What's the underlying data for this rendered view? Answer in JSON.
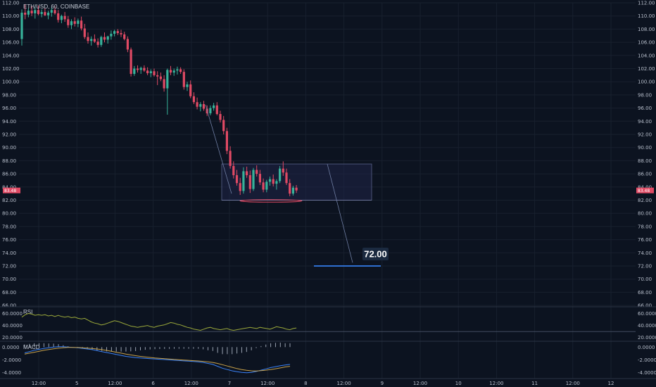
{
  "symbol_title": "ETH/USD, 60, COINBASE",
  "colors": {
    "background": "#0c1320",
    "up_candle": "#37b29a",
    "down_candle": "#e04a64",
    "target_line": "#2f6fd1",
    "zone_fill": "#1f2547",
    "rsi_line": "#9aa83a",
    "macd_line": "#3b82f6",
    "signal_line": "#c9a24a"
  },
  "chart_data": [
    {
      "type": "candlestick",
      "title": "ETH/USD, 60, COINBASE",
      "ylim": [
        65,
        112
      ],
      "y_ticks": [
        "112.00",
        "110.00",
        "108.00",
        "106.00",
        "104.00",
        "102.00",
        "100.00",
        "98.00",
        "96.00",
        "94.00",
        "92.00",
        "90.00",
        "88.00",
        "86.00",
        "84.00",
        "82.00",
        "80.00",
        "78.00",
        "76.00",
        "74.00",
        "72.00",
        "70.00",
        "68.00",
        "66.00"
      ],
      "x_ticks": [
        "12:00",
        "5",
        "12:00",
        "6",
        "12:00",
        "7",
        "12:00",
        "8",
        "12:00",
        "9",
        "12:00",
        "10",
        "12:00",
        "11",
        "12:00",
        "12"
      ],
      "last_price": "83.48",
      "target_label": "72.00",
      "target_value": 72.0,
      "range_box": {
        "y_top": 87.5,
        "y_bottom": 82.0
      },
      "candles": [
        [
          106.5,
          111.0,
          105.5,
          110.5
        ],
        [
          110.5,
          111.8,
          109.5,
          110.2
        ],
        [
          110.2,
          111.2,
          109.8,
          110.8
        ],
        [
          110.8,
          111.5,
          110.0,
          110.4
        ],
        [
          110.4,
          111.4,
          109.6,
          110.9
        ],
        [
          110.9,
          111.6,
          110.1,
          110.3
        ],
        [
          110.3,
          111.0,
          109.8,
          110.6
        ],
        [
          110.6,
          111.2,
          110.0,
          110.1
        ],
        [
          110.1,
          110.8,
          109.5,
          110.5
        ],
        [
          110.5,
          111.3,
          109.9,
          110.9
        ],
        [
          110.9,
          111.5,
          110.2,
          110.4
        ],
        [
          110.4,
          110.9,
          109.0,
          109.4
        ],
        [
          109.4,
          110.2,
          108.9,
          110.0
        ],
        [
          110.0,
          110.6,
          109.1,
          109.5
        ],
        [
          109.5,
          110.0,
          108.2,
          108.6
        ],
        [
          108.6,
          109.5,
          108.0,
          109.2
        ],
        [
          109.2,
          109.8,
          108.4,
          108.8
        ],
        [
          108.8,
          109.6,
          108.3,
          109.3
        ],
        [
          109.3,
          109.9,
          107.8,
          108.1
        ],
        [
          108.1,
          108.8,
          106.5,
          106.8
        ],
        [
          106.8,
          107.5,
          105.8,
          106.2
        ],
        [
          106.2,
          106.9,
          105.5,
          106.5
        ],
        [
          106.5,
          107.2,
          105.9,
          106.1
        ],
        [
          106.1,
          106.6,
          105.2,
          105.6
        ],
        [
          105.6,
          107.0,
          105.3,
          106.8
        ],
        [
          106.8,
          107.5,
          106.0,
          106.4
        ],
        [
          106.4,
          107.0,
          105.8,
          106.9
        ],
        [
          106.9,
          107.8,
          106.4,
          107.3
        ],
        [
          107.3,
          107.9,
          106.9,
          107.7
        ],
        [
          107.7,
          108.0,
          107.1,
          107.4
        ],
        [
          107.4,
          107.9,
          106.8,
          107.2
        ],
        [
          107.2,
          107.6,
          106.3,
          106.5
        ],
        [
          106.5,
          106.9,
          104.5,
          104.9
        ],
        [
          104.9,
          105.2,
          100.8,
          101.2
        ],
        [
          101.2,
          102.4,
          100.9,
          102.0
        ],
        [
          102.0,
          102.5,
          101.4,
          101.8
        ],
        [
          101.8,
          102.3,
          101.2,
          102.1
        ],
        [
          102.1,
          102.5,
          101.5,
          101.7
        ],
        [
          101.7,
          102.2,
          101.0,
          101.3
        ],
        [
          101.3,
          101.9,
          100.7,
          101.6
        ],
        [
          101.6,
          102.0,
          100.8,
          101.0
        ],
        [
          101.0,
          101.6,
          99.5,
          100.8
        ],
        [
          100.8,
          101.4,
          100.1,
          100.4
        ],
        [
          100.4,
          101.0,
          98.5,
          99.0
        ],
        [
          99.0,
          102.0,
          95.0,
          101.8
        ],
        [
          101.8,
          102.4,
          101.0,
          101.4
        ],
        [
          101.4,
          102.0,
          100.9,
          101.7
        ],
        [
          101.7,
          102.3,
          101.1,
          101.9
        ],
        [
          101.9,
          102.2,
          101.2,
          101.5
        ],
        [
          101.5,
          101.9,
          98.8,
          99.2
        ],
        [
          99.2,
          100.0,
          98.6,
          99.6
        ],
        [
          99.6,
          100.2,
          97.5,
          97.8
        ],
        [
          97.8,
          98.4,
          96.6,
          96.9
        ],
        [
          96.9,
          97.6,
          95.8,
          96.2
        ],
        [
          96.2,
          96.9,
          95.5,
          96.6
        ],
        [
          96.6,
          97.1,
          95.6,
          95.9
        ],
        [
          95.9,
          96.4,
          94.8,
          95.2
        ],
        [
          95.2,
          96.4,
          94.9,
          96.0
        ],
        [
          96.0,
          96.8,
          95.6,
          96.4
        ],
        [
          96.4,
          96.9,
          94.9,
          95.1
        ],
        [
          95.1,
          95.6,
          93.8,
          94.2
        ],
        [
          94.2,
          94.8,
          92.0,
          92.5
        ],
        [
          92.5,
          93.0,
          89.0,
          89.5
        ],
        [
          89.5,
          90.2,
          86.8,
          87.2
        ],
        [
          87.2,
          87.9,
          85.3,
          85.8
        ],
        [
          85.8,
          86.6,
          84.2,
          84.6
        ],
        [
          84.6,
          85.4,
          82.8,
          83.4
        ],
        [
          83.4,
          87.0,
          83.0,
          86.4
        ],
        [
          86.4,
          87.1,
          85.4,
          85.8
        ],
        [
          85.8,
          86.5,
          83.1,
          83.7
        ],
        [
          83.7,
          86.9,
          83.4,
          86.6
        ],
        [
          86.6,
          87.3,
          85.6,
          86.0
        ],
        [
          86.0,
          86.6,
          84.3,
          84.7
        ],
        [
          84.7,
          85.3,
          83.2,
          83.6
        ],
        [
          83.6,
          85.1,
          83.2,
          84.8
        ],
        [
          84.8,
          85.6,
          84.2,
          85.2
        ],
        [
          85.2,
          85.9,
          84.1,
          84.5
        ],
        [
          84.5,
          85.2,
          83.6,
          84.9
        ],
        [
          84.9,
          87.2,
          84.6,
          86.8
        ],
        [
          86.8,
          87.9,
          85.7,
          86.2
        ],
        [
          86.2,
          86.8,
          84.3,
          84.6
        ],
        [
          84.6,
          85.2,
          82.6,
          83.0
        ],
        [
          83.0,
          84.2,
          82.7,
          83.9
        ],
        [
          83.9,
          84.3,
          83.1,
          83.48
        ]
      ]
    },
    {
      "type": "line",
      "label": "RSI",
      "ylim": [
        15,
        70
      ],
      "y_ticks": [
        "60.0000",
        "40.0000",
        "20.0000"
      ],
      "values": [
        54,
        58,
        60,
        59,
        57,
        58,
        57,
        58,
        56,
        57,
        55,
        57,
        55,
        54,
        55,
        53,
        54,
        52,
        51,
        52,
        49,
        46,
        44,
        43,
        41,
        42,
        44,
        46,
        48,
        47,
        45,
        43,
        41,
        39,
        38,
        37,
        38,
        39,
        40,
        38,
        37,
        39,
        40,
        41,
        43,
        45,
        44,
        42,
        41,
        39,
        37,
        36,
        34,
        33,
        32,
        34,
        36,
        37,
        35,
        34,
        33,
        34,
        35,
        33,
        32,
        33,
        34,
        35,
        36,
        37,
        36,
        35,
        37,
        36,
        35,
        34,
        36,
        38,
        37,
        36,
        34,
        33,
        35,
        36
      ]
    },
    {
      "type": "line",
      "label": "MACD",
      "ylim": [
        -4.8,
        0.8
      ],
      "y_ticks": [
        "0.0000",
        "-2.0000",
        "-4.0000"
      ],
      "series": [
        {
          "values": [
            -0.9,
            -0.7,
            -0.5,
            -0.35,
            -0.2,
            -0.1,
            0.0,
            0.05,
            0.05,
            0.0,
            -0.05,
            -0.1,
            -0.2,
            -0.3,
            -0.4,
            -0.55,
            -0.7,
            -0.85,
            -1.0,
            -1.15,
            -1.3,
            -1.45,
            -1.55,
            -1.65,
            -1.7,
            -1.75,
            -1.8,
            -1.85,
            -1.9,
            -1.95,
            -2.0,
            -2.05,
            -2.1,
            -2.15,
            -2.2,
            -2.25,
            -2.3,
            -2.4,
            -2.55,
            -2.7,
            -3.0,
            -3.3,
            -3.5,
            -3.7,
            -3.85,
            -3.95,
            -4.0,
            -3.95,
            -3.8,
            -3.6,
            -3.4,
            -3.2,
            -3.05,
            -2.9,
            -2.8,
            -2.7
          ]
        },
        {
          "values": [
            -1.1,
            -0.95,
            -0.8,
            -0.65,
            -0.5,
            -0.38,
            -0.27,
            -0.18,
            -0.1,
            -0.06,
            -0.05,
            -0.07,
            -0.1,
            -0.15,
            -0.22,
            -0.3,
            -0.4,
            -0.52,
            -0.65,
            -0.8,
            -0.95,
            -1.1,
            -1.22,
            -1.34,
            -1.45,
            -1.54,
            -1.62,
            -1.69,
            -1.75,
            -1.81,
            -1.86,
            -1.92,
            -1.97,
            -2.02,
            -2.07,
            -2.12,
            -2.17,
            -2.23,
            -2.3,
            -2.4,
            -2.55,
            -2.75,
            -2.95,
            -3.15,
            -3.35,
            -3.5,
            -3.62,
            -3.7,
            -3.72,
            -3.68,
            -3.6,
            -3.5,
            -3.38,
            -3.25,
            -3.1,
            -3.0
          ]
        }
      ]
    }
  ]
}
